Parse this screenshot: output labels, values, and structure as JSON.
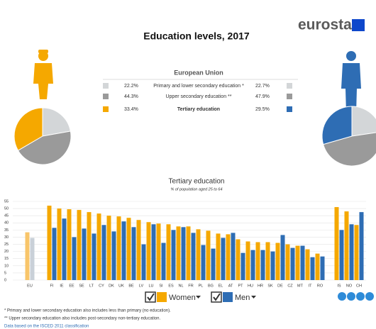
{
  "header": {
    "title": "Education levels, 2017",
    "logo": "eurostat"
  },
  "summary_title": "European Union",
  "footnotes": [
    "* Primary and lower secondary education also includes less than primary (no education).",
    "** Upper secondary education also includes post-secondary non-tertiary education.",
    "Data based on the ISCED 2011 classification"
  ],
  "chart_data": [
    {
      "type": "pie",
      "categories": [
        "Primary and lower secondary education *",
        "Upper secondary education **",
        "Tertiary education"
      ],
      "values": [
        22.2,
        44.3,
        33.4
      ],
      "value_labels": [
        "22.2%",
        "44.3%",
        "33.4%"
      ],
      "colors": [
        "#d3d6d8",
        "#9a9a9a",
        "#f5a800"
      ]
    },
    {
      "type": "pie",
      "values": [
        22.7,
        47.9,
        29.5
      ],
      "value_labels": [
        "22.7%",
        "47.9%",
        "29.5%"
      ],
      "colors": [
        "#d3d6d8",
        "#9a9a9a",
        "#2e6db4"
      ]
    },
    {
      "type": "bar",
      "title": "Tertiary education",
      "subtitle": "% of population aged 25 to 64",
      "categories": [
        "EU",
        "FI",
        "IE",
        "EE",
        "SE",
        "LT",
        "CY",
        "DK",
        "UK",
        "BE",
        "LV",
        "LU",
        "SI",
        "ES",
        "NL",
        "FR",
        "PL",
        "BG",
        "EL",
        "AT",
        "PT",
        "HU",
        "HR",
        "SK",
        "DE",
        "CZ",
        "MT",
        "IT",
        "RO",
        "IS",
        "NO",
        "CH"
      ],
      "series": [
        {
          "name": "Women",
          "color": "#f5a800",
          "highlight_color": "#f8c56a",
          "values": [
            33.4,
            52,
            50,
            49.5,
            49,
            47.5,
            46.5,
            45,
            44.5,
            43.5,
            42,
            40.5,
            39.5,
            39,
            37.5,
            37.5,
            35.5,
            34.5,
            32.5,
            32,
            28.5,
            27,
            26.5,
            26.5,
            26,
            25,
            24,
            21.5,
            18.5,
            51,
            48,
            38.5
          ]
        },
        {
          "name": "Men",
          "color": "#2e6db4",
          "highlight_color": "#c9d0d8",
          "values": [
            29.5,
            36.5,
            43,
            30,
            36,
            32.5,
            38.5,
            34,
            41,
            37,
            25,
            39,
            26,
            35,
            37,
            33,
            24.5,
            22,
            29.5,
            33,
            19,
            21,
            21,
            20,
            31.5,
            22.5,
            24,
            16,
            16.5,
            35,
            39,
            47.5
          ]
        }
      ],
      "ylim": [
        0,
        55
      ],
      "yticks": [
        0,
        5,
        10,
        15,
        20,
        25,
        30,
        35,
        40,
        45,
        50,
        55
      ],
      "grid": true
    }
  ]
}
